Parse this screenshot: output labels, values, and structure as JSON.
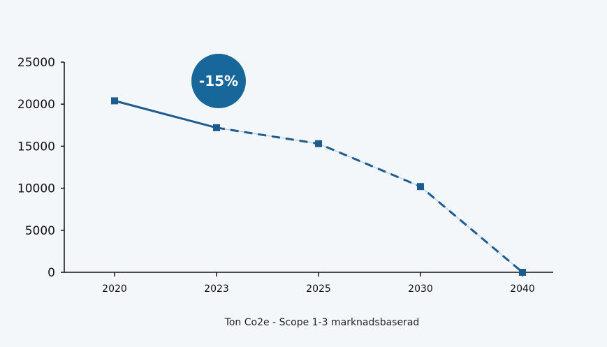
{
  "chart_data": {
    "type": "line",
    "categories": [
      "2020",
      "2023",
      "2025",
      "2030",
      "2040"
    ],
    "values": [
      20400,
      17200,
      15300,
      10200,
      0
    ],
    "ylim": [
      0,
      25000
    ],
    "yticks": [
      "0",
      "5000",
      "10000",
      "15000",
      "20000",
      "25000"
    ],
    "xlabel": "Ton Co2e - Scope 1-3 marknadsbaserad",
    "ylabel": "",
    "title": "",
    "segments": [
      {
        "from": "2020",
        "to": "2023",
        "style": "solid"
      },
      {
        "from": "2023",
        "to": "2040",
        "style": "dashed"
      }
    ],
    "annotation": {
      "text": "-15%",
      "near": "2023"
    },
    "colors": {
      "line": "#1d5c8f",
      "badge": "#17679a",
      "axis": "#111111"
    }
  }
}
